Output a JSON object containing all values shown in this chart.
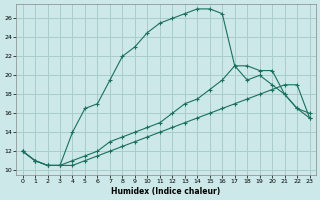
{
  "xlabel": "Humidex (Indice chaleur)",
  "bg_color": "#cce8e8",
  "grid_color": "#aacccc",
  "line_color": "#1a7060",
  "xlim": [
    -0.5,
    23.5
  ],
  "ylim": [
    9.5,
    27.5
  ],
  "xticks": [
    0,
    1,
    2,
    3,
    4,
    5,
    6,
    7,
    8,
    9,
    10,
    11,
    12,
    13,
    14,
    15,
    16,
    17,
    18,
    19,
    20,
    21,
    22,
    23
  ],
  "yticks": [
    10,
    12,
    14,
    16,
    18,
    20,
    22,
    24,
    26
  ],
  "line1_x": [
    0,
    1,
    2,
    3,
    4,
    5,
    6,
    7,
    8,
    9,
    10,
    11,
    12,
    13,
    14,
    15,
    16,
    17,
    18,
    19,
    20,
    21,
    22,
    23
  ],
  "line1_y": [
    12,
    11,
    10.5,
    10.5,
    10.5,
    11,
    11.5,
    12,
    12.5,
    13,
    13.5,
    14,
    14.5,
    15,
    15.5,
    16,
    16.5,
    17,
    17.5,
    18,
    18.5,
    19,
    19,
    15.5
  ],
  "line2_x": [
    0,
    1,
    2,
    3,
    4,
    5,
    6,
    7,
    8,
    9,
    10,
    11,
    12,
    13,
    14,
    15,
    16,
    17,
    18,
    19,
    20,
    21,
    22,
    23
  ],
  "line2_y": [
    12,
    11,
    10.5,
    10.5,
    14,
    16.5,
    17,
    19.5,
    22,
    23,
    24.5,
    25.5,
    26,
    26.5,
    27,
    27,
    26.5,
    21,
    19.5,
    20,
    19,
    18,
    16.5,
    16
  ],
  "line3_x": [
    0,
    1,
    2,
    3,
    4,
    5,
    6,
    7,
    8,
    9,
    10,
    11,
    12,
    13,
    14,
    15,
    16,
    17,
    18,
    19,
    20,
    21,
    22,
    23
  ],
  "line3_y": [
    12,
    11,
    10.5,
    10.5,
    11,
    11.5,
    12,
    13,
    13.5,
    14,
    14.5,
    15,
    16,
    17,
    17.5,
    18.5,
    19.5,
    21,
    21,
    20.5,
    20.5,
    18,
    16.5,
    15.5
  ]
}
